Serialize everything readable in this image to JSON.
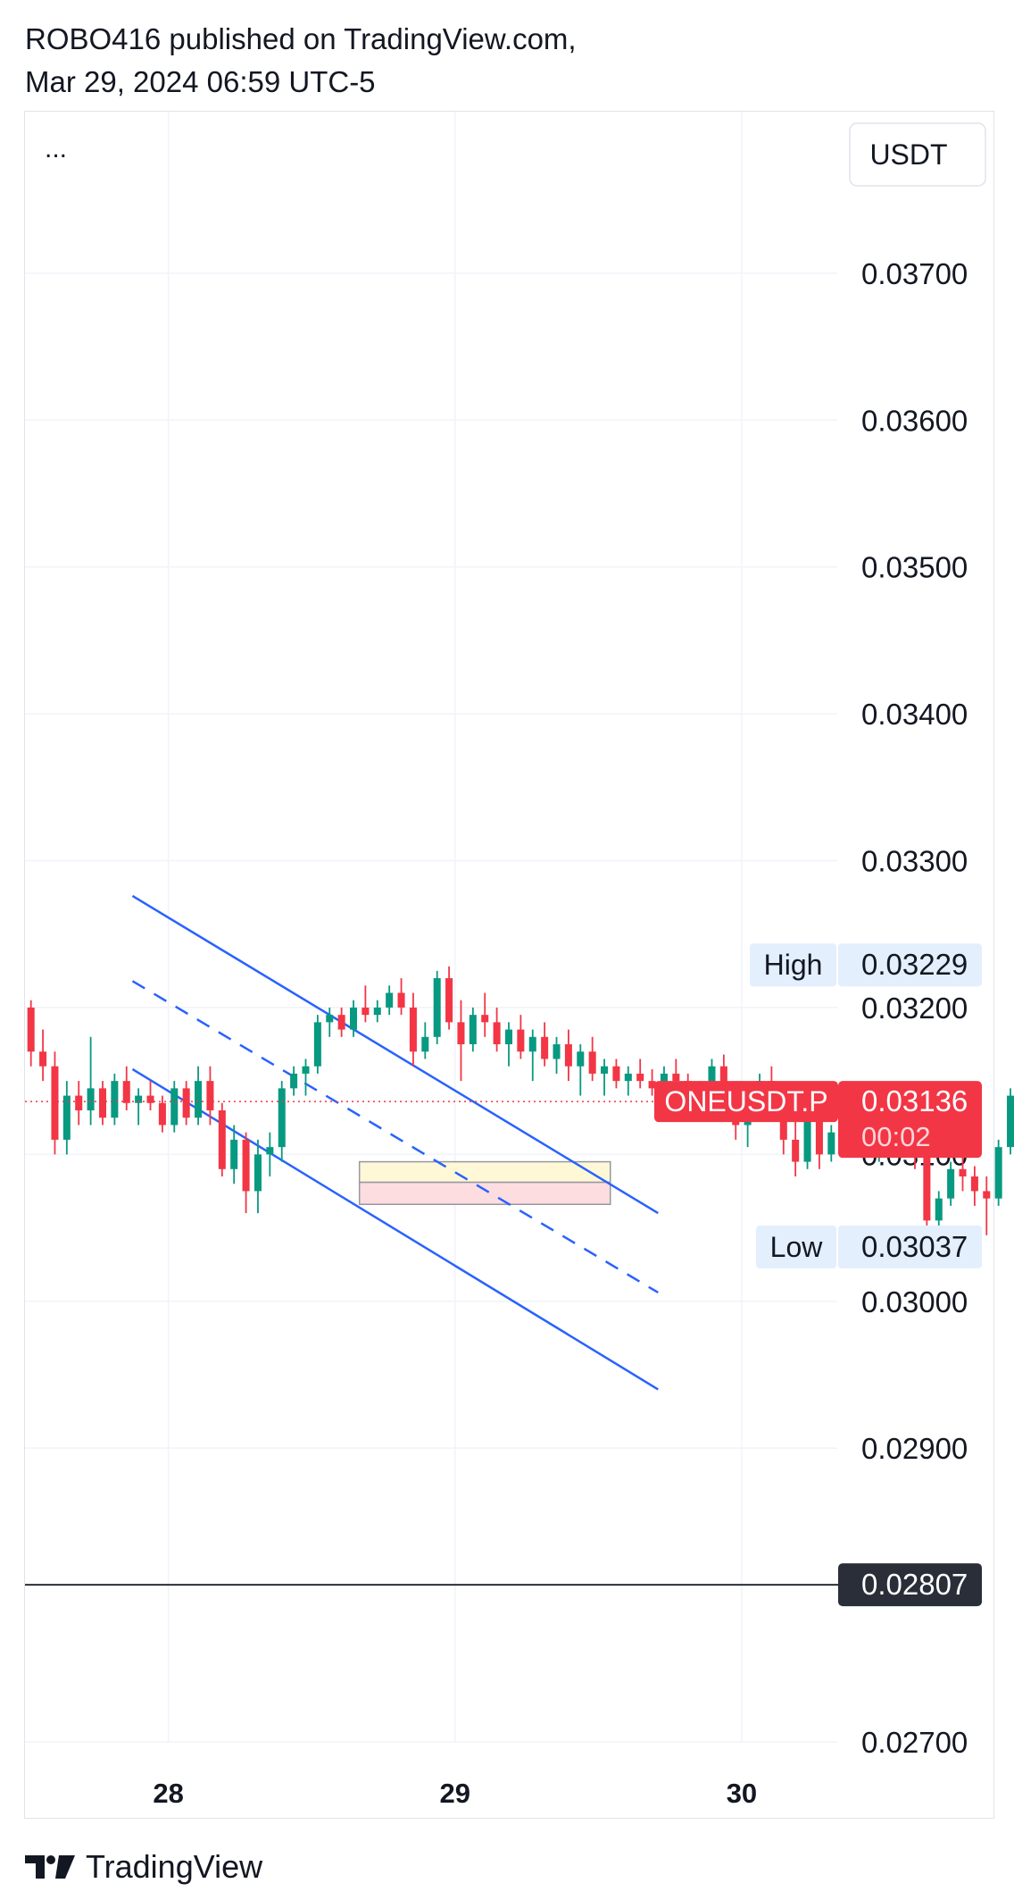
{
  "header": {
    "publisher_line": "ROBO416 published on TradingView.com,",
    "date_line": "Mar 29, 2024 06:59 UTC-5"
  },
  "toolbar": {
    "more_label": "...",
    "currency_label": "USDT"
  },
  "footer": {
    "brand": "TradingView"
  },
  "colors": {
    "up": "#089981",
    "down": "#f23645",
    "channel": "#2962ff",
    "grid": "#f0f3fa",
    "text": "#131722",
    "price_bg": "#f23645",
    "hl_bg": "#e3effd",
    "dark_label": "#2a2e39"
  },
  "chart_data": {
    "type": "candlestick",
    "symbol": "ONEUSDT.P",
    "x_axis": {
      "ticks": [
        "28",
        "29",
        "30"
      ],
      "range": [
        "Mar 27 12:00",
        "Mar 30 08:00"
      ]
    },
    "y_axis": {
      "ticks": [
        "0.03700",
        "0.03600",
        "0.03500",
        "0.03400",
        "0.03300",
        "0.03200",
        "0.03100",
        "0.03000",
        "0.02900",
        "0.02700"
      ],
      "range": [
        0.027,
        0.0381
      ]
    },
    "last_price": {
      "label": "ONEUSDT.P",
      "value": "0.03136",
      "countdown": "00:02"
    },
    "high": {
      "label": "High",
      "value": "0.03229"
    },
    "low": {
      "label": "Low",
      "value": "0.03037"
    },
    "horizontal_line": {
      "value": "0.02807"
    },
    "channel_lines": [
      {
        "style": "solid",
        "start": [
          "Mar 27 21:00",
          0.03276
        ],
        "end": [
          "Mar 29 17:00",
          0.0306
        ]
      },
      {
        "style": "dashed",
        "start": [
          "Mar 27 21:00",
          0.03218
        ],
        "end": [
          "Mar 29 17:00",
          0.03006
        ]
      },
      {
        "style": "solid",
        "start": [
          "Mar 27 21:00",
          0.03158
        ],
        "end": [
          "Mar 29 17:00",
          0.0294
        ]
      }
    ],
    "zones": [
      {
        "type": "target",
        "color": "#fff8d6",
        "from": 0.03081,
        "to": 0.03095,
        "start": "Mar 28 16:00",
        "end": "Mar 29 13:00"
      },
      {
        "type": "stop",
        "color": "#fddde0",
        "from": 0.03066,
        "to": 0.03081,
        "start": "Mar 28 16:00",
        "end": "Mar 29 13:00"
      }
    ],
    "candles_start": "Mar 27 12:00",
    "candle_interval_hours": 1,
    "candles": [
      [
        0.032,
        0.03205,
        0.0316,
        0.0317
      ],
      [
        0.0317,
        0.03185,
        0.0315,
        0.0316
      ],
      [
        0.0316,
        0.0317,
        0.031,
        0.0311
      ],
      [
        0.0311,
        0.0315,
        0.031,
        0.0314
      ],
      [
        0.0314,
        0.0315,
        0.0312,
        0.0313
      ],
      [
        0.0313,
        0.0318,
        0.0312,
        0.03145
      ],
      [
        0.03145,
        0.0315,
        0.0312,
        0.03125
      ],
      [
        0.03125,
        0.03155,
        0.0312,
        0.0315
      ],
      [
        0.0315,
        0.0316,
        0.0313,
        0.03135
      ],
      [
        0.03135,
        0.03145,
        0.0312,
        0.0314
      ],
      [
        0.0314,
        0.0315,
        0.0313,
        0.03135
      ],
      [
        0.03135,
        0.0314,
        0.03115,
        0.0312
      ],
      [
        0.0312,
        0.0315,
        0.03115,
        0.03145
      ],
      [
        0.03145,
        0.0315,
        0.0312,
        0.03125
      ],
      [
        0.03125,
        0.0316,
        0.0312,
        0.0315
      ],
      [
        0.0315,
        0.0316,
        0.0312,
        0.0313
      ],
      [
        0.0313,
        0.03135,
        0.03085,
        0.0309
      ],
      [
        0.0309,
        0.0312,
        0.0308,
        0.0311
      ],
      [
        0.0311,
        0.03115,
        0.0306,
        0.03075
      ],
      [
        0.03075,
        0.0311,
        0.0306,
        0.031
      ],
      [
        0.031,
        0.03115,
        0.03085,
        0.03105
      ],
      [
        0.03105,
        0.0315,
        0.03095,
        0.03145
      ],
      [
        0.03145,
        0.0316,
        0.0314,
        0.03155
      ],
      [
        0.03155,
        0.03165,
        0.0314,
        0.0316
      ],
      [
        0.0316,
        0.03195,
        0.03155,
        0.0319
      ],
      [
        0.0319,
        0.032,
        0.0318,
        0.03195
      ],
      [
        0.03195,
        0.032,
        0.0318,
        0.03185
      ],
      [
        0.03185,
        0.03205,
        0.0318,
        0.032
      ],
      [
        0.032,
        0.03215,
        0.0319,
        0.03195
      ],
      [
        0.03195,
        0.03205,
        0.0319,
        0.032
      ],
      [
        0.032,
        0.03215,
        0.03195,
        0.0321
      ],
      [
        0.0321,
        0.0322,
        0.03195,
        0.032
      ],
      [
        0.032,
        0.0321,
        0.0316,
        0.0317
      ],
      [
        0.0317,
        0.0319,
        0.03165,
        0.0318
      ],
      [
        0.0318,
        0.03225,
        0.03175,
        0.0322
      ],
      [
        0.0322,
        0.03228,
        0.03185,
        0.0319
      ],
      [
        0.0319,
        0.03205,
        0.0315,
        0.03175
      ],
      [
        0.03175,
        0.032,
        0.0317,
        0.03195
      ],
      [
        0.03195,
        0.0321,
        0.0318,
        0.0319
      ],
      [
        0.0319,
        0.032,
        0.0317,
        0.03175
      ],
      [
        0.03175,
        0.0319,
        0.0316,
        0.03185
      ],
      [
        0.03185,
        0.03195,
        0.03165,
        0.0317
      ],
      [
        0.0317,
        0.03185,
        0.0315,
        0.0318
      ],
      [
        0.0318,
        0.0319,
        0.0316,
        0.03165
      ],
      [
        0.03165,
        0.0318,
        0.03155,
        0.03175
      ],
      [
        0.03175,
        0.03185,
        0.0315,
        0.0316
      ],
      [
        0.0316,
        0.03175,
        0.0314,
        0.0317
      ],
      [
        0.0317,
        0.0318,
        0.0315,
        0.03155
      ],
      [
        0.03155,
        0.03165,
        0.0314,
        0.0316
      ],
      [
        0.0316,
        0.03165,
        0.03145,
        0.0315
      ],
      [
        0.0315,
        0.0316,
        0.0314,
        0.03155
      ],
      [
        0.03155,
        0.03165,
        0.03145,
        0.0315
      ],
      [
        0.0315,
        0.03158,
        0.0314,
        0.03145
      ],
      [
        0.03145,
        0.0316,
        0.03135,
        0.03155
      ],
      [
        0.03155,
        0.03165,
        0.0314,
        0.0315
      ],
      [
        0.0315,
        0.03155,
        0.03125,
        0.03135
      ],
      [
        0.03135,
        0.0315,
        0.0313,
        0.03145
      ],
      [
        0.03145,
        0.03165,
        0.0314,
        0.0316
      ],
      [
        0.0316,
        0.03168,
        0.03135,
        0.0314
      ],
      [
        0.0314,
        0.0315,
        0.0311,
        0.0312
      ],
      [
        0.0312,
        0.0314,
        0.03105,
        0.03135
      ],
      [
        0.03135,
        0.03155,
        0.0313,
        0.0315
      ],
      [
        0.0315,
        0.0316,
        0.03125,
        0.0313
      ],
      [
        0.0313,
        0.0314,
        0.031,
        0.0311
      ],
      [
        0.0311,
        0.03125,
        0.03085,
        0.03095
      ],
      [
        0.03095,
        0.0313,
        0.0309,
        0.03125
      ],
      [
        0.03125,
        0.0313,
        0.0309,
        0.031
      ],
      [
        0.031,
        0.0312,
        0.03095,
        0.03115
      ],
      [
        0.03115,
        0.0313,
        0.031,
        0.0311
      ],
      [
        0.0311,
        0.03135,
        0.03105,
        0.03125
      ],
      [
        0.03125,
        0.0313,
        0.031,
        0.03105
      ],
      [
        0.03105,
        0.0312,
        0.03095,
        0.03115
      ],
      [
        0.03115,
        0.0313,
        0.03105,
        0.0311
      ],
      [
        0.0311,
        0.03128,
        0.03105,
        0.03125
      ],
      [
        0.03125,
        0.0313,
        0.0309,
        0.031
      ],
      [
        0.031,
        0.03105,
        0.0304,
        0.03055
      ],
      [
        0.03055,
        0.03075,
        0.03048,
        0.0307
      ],
      [
        0.0307,
        0.03095,
        0.03065,
        0.0309
      ],
      [
        0.0309,
        0.031,
        0.03075,
        0.03085
      ],
      [
        0.03085,
        0.03092,
        0.03065,
        0.03075
      ],
      [
        0.03075,
        0.03085,
        0.03045,
        0.0307
      ],
      [
        0.0307,
        0.0311,
        0.03065,
        0.03105
      ],
      [
        0.03105,
        0.03145,
        0.031,
        0.0314
      ],
      [
        0.0314,
        0.0315,
        0.0313,
        0.03136
      ]
    ]
  }
}
